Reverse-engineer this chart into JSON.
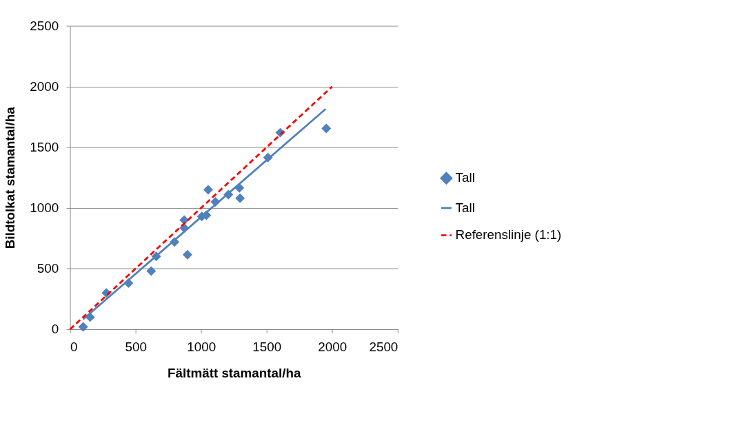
{
  "chart_data": {
    "type": "scatter",
    "xlabel": "Fältmätt stamantal/ha",
    "ylabel": "Bildtolkat stamantal/ha",
    "xlim": [
      0,
      2500
    ],
    "xticks": [
      0,
      500,
      1000,
      1500,
      2000,
      2500
    ],
    "ylim": [
      0,
      2500
    ],
    "yticks": [
      0,
      500,
      1000,
      1500,
      2000,
      2500
    ],
    "grid": "y",
    "legend": "right",
    "series": [
      {
        "name": "Tall",
        "color": "#4f81bd",
        "marker": "diamond",
        "x": [
          100,
          153,
          277,
          446,
          619,
          658,
          797,
          871,
          871,
          896,
          1005,
          1040,
          1054,
          1109,
          1208,
          1292,
          1297,
          1510,
          1604,
          1955
        ],
        "values": [
          20,
          100,
          300,
          380,
          480,
          600,
          720,
          900,
          835,
          615,
          930,
          940,
          1150,
          1050,
          1110,
          1165,
          1080,
          1415,
          1620,
          1655
        ]
      },
      {
        "name": "Tall",
        "type": "line",
        "color": "#4f81bd",
        "line_style": "solid",
        "marker": "none",
        "x": [
          100,
          1950
        ],
        "values": [
          82,
          1815
        ]
      },
      {
        "name": "Referenslinje (1:1)",
        "type": "line",
        "color": "#ff0000",
        "line_style": "dashed",
        "marker": "none",
        "x": [
          0,
          2000
        ],
        "values": [
          0,
          2000
        ]
      }
    ]
  }
}
